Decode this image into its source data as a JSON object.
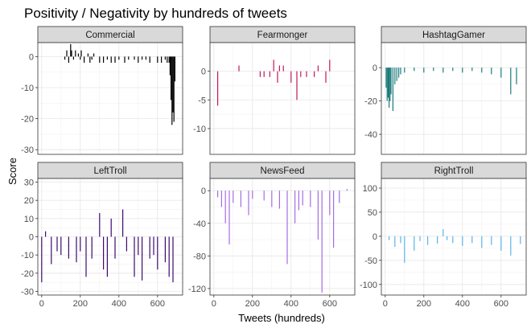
{
  "chart_data": {
    "type": "bar",
    "title": "Positivity / Negativity by hundreds of tweets",
    "xlabel": "Tweets (hundreds)",
    "ylabel": "Score",
    "xlim": [
      -20,
      730
    ],
    "x_ticks": [
      0,
      200,
      400,
      600
    ],
    "grid": true,
    "legend": "none",
    "panels": [
      {
        "name": "Commercial",
        "color": "#000000",
        "ylim": [
          -31.5,
          4.5
        ],
        "y_ticks": [
          0,
          -10,
          -20,
          -30
        ],
        "x": [
          120,
          130,
          140,
          150,
          155,
          165,
          175,
          190,
          200,
          205,
          220,
          240,
          250,
          260,
          270,
          300,
          320,
          340,
          360,
          380,
          400,
          430,
          450,
          480,
          500,
          520,
          540,
          560,
          600,
          620,
          640,
          650,
          660,
          665,
          670,
          675,
          680,
          685,
          690
        ],
        "y": [
          -1,
          2,
          -2,
          4,
          2,
          -1,
          2,
          1,
          -1,
          2,
          -2,
          1,
          -2,
          -1,
          1,
          -2,
          -2,
          -1,
          -2,
          -2,
          -1,
          -2,
          -1,
          -1,
          -2,
          -1,
          -1,
          -2,
          -2,
          -2,
          -1,
          -2,
          -2,
          -6,
          -14,
          -22,
          -18,
          -21,
          -8
        ]
      },
      {
        "name": "Fearmonger",
        "color": "#c2185b",
        "ylim": [
          -14.5,
          5
        ],
        "y_ticks": [
          0,
          -5,
          -10
        ],
        "x": [
          20,
          130,
          240,
          260,
          290,
          310,
          330,
          340,
          360,
          400,
          430,
          450,
          480,
          520,
          540,
          580,
          600
        ],
        "y": [
          -6,
          1,
          -1,
          -1,
          -1,
          2,
          -2,
          1,
          1,
          -2,
          -5,
          -1,
          -1,
          -1,
          1,
          -2,
          2
        ],
        "partial_note": ""
      },
      {
        "name": "HashtagGamer",
        "color": "#1b7a7a",
        "ylim": [
          -52,
          15
        ],
        "y_ticks": [
          0,
          -20,
          -40
        ],
        "x": [
          5,
          10,
          15,
          20,
          25,
          30,
          40,
          50,
          60,
          70,
          80,
          100,
          150,
          200,
          250,
          300,
          350,
          400,
          450,
          500,
          550,
          600,
          650,
          680
        ],
        "y": [
          -12,
          -20,
          -18,
          -24,
          -20,
          -16,
          -26,
          -10,
          -8,
          -6,
          -4,
          -3,
          -2,
          -3,
          -2,
          -3,
          -2,
          -3,
          -2,
          -3,
          -4,
          -6,
          -16,
          -10
        ]
      },
      {
        "name": "LeftTroll",
        "color": "#3b0a6e",
        "ylim": [
          -32,
          32
        ],
        "y_ticks": [
          30,
          20,
          10,
          0,
          -10,
          -20,
          -30
        ],
        "x": [
          0,
          20,
          50,
          80,
          100,
          140,
          180,
          200,
          230,
          260,
          300,
          320,
          340,
          360,
          380,
          420,
          440,
          480,
          500,
          520,
          560,
          580,
          600,
          640,
          660,
          680
        ],
        "y": [
          -25,
          3,
          -15,
          -8,
          -10,
          -12,
          -14,
          -8,
          -22,
          -12,
          13,
          -18,
          -22,
          10,
          -12,
          15,
          -8,
          -22,
          -10,
          -24,
          -12,
          -10,
          -18,
          -14,
          -22,
          -25
        ]
      },
      {
        "name": "NewsFeed",
        "color": "#a56de2",
        "ylim": [
          -128,
          15
        ],
        "y_ticks": [
          0,
          -40,
          -80,
          -120
        ],
        "x": [
          20,
          40,
          60,
          80,
          100,
          140,
          180,
          200,
          260,
          300,
          340,
          380,
          420,
          440,
          460,
          500,
          540,
          560,
          600,
          620,
          650,
          690
        ],
        "y": [
          -8,
          -20,
          -40,
          -66,
          -15,
          -20,
          -30,
          -10,
          -12,
          -20,
          -22,
          -90,
          -40,
          -24,
          -18,
          -20,
          -60,
          -125,
          -30,
          -70,
          -15,
          2
        ]
      },
      {
        "name": "RightTroll",
        "color": "#56b4e9",
        "ylim": [
          -122,
          120
        ],
        "y_ticks": [
          100,
          50,
          0,
          -50,
          -100
        ],
        "x": [
          20,
          50,
          80,
          100,
          150,
          180,
          220,
          270,
          300,
          320,
          350,
          400,
          450,
          500,
          550,
          600,
          650,
          700
        ],
        "y": [
          -8,
          -22,
          -14,
          -55,
          -30,
          -10,
          -18,
          -15,
          15,
          -8,
          -14,
          -20,
          -14,
          -24,
          -18,
          -30,
          -40,
          -16
        ]
      }
    ]
  }
}
